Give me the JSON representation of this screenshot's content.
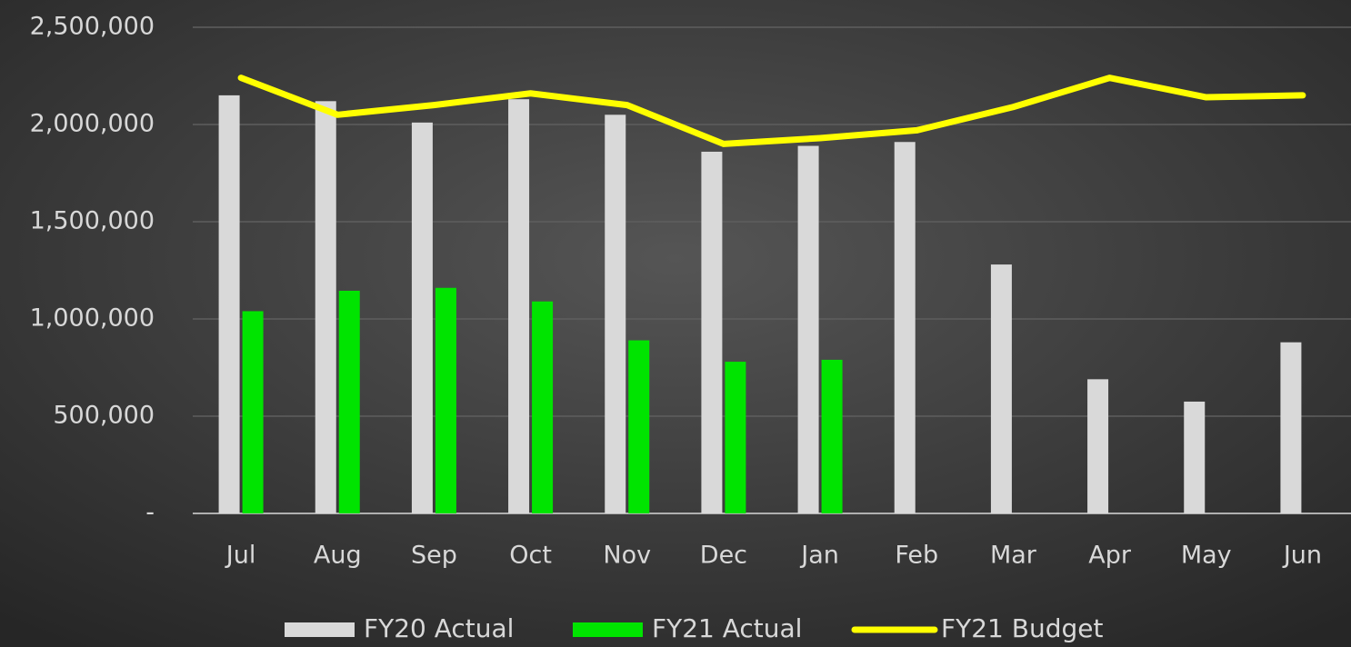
{
  "chart_data": {
    "type": "bar",
    "categories": [
      "Jul",
      "Aug",
      "Sep",
      "Oct",
      "Nov",
      "Dec",
      "Jan",
      "Feb",
      "Mar",
      "Apr",
      "May",
      "Jun"
    ],
    "series": [
      {
        "name": "FY20 Actual",
        "color": "#d9d9d9",
        "type": "bar",
        "values": [
          2150000,
          2120000,
          2010000,
          2130000,
          2050000,
          1860000,
          1890000,
          1910000,
          1280000,
          690000,
          575000,
          880000
        ]
      },
      {
        "name": "FY21 Actual",
        "color": "#00e400",
        "type": "bar",
        "values": [
          1040000,
          1145000,
          1160000,
          1090000,
          890000,
          780000,
          790000,
          null,
          null,
          null,
          null,
          null
        ]
      },
      {
        "name": "FY21 Budget",
        "color": "#ffff00",
        "type": "line",
        "values": [
          2240000,
          2050000,
          2100000,
          2160000,
          2100000,
          1900000,
          1930000,
          1970000,
          2090000,
          2240000,
          2140000,
          2150000
        ]
      }
    ],
    "ylim": [
      0,
      2500000
    ],
    "yticks": [
      {
        "value": 0,
        "label": "-"
      },
      {
        "value": 500000,
        "label": "500,000"
      },
      {
        "value": 1000000,
        "label": "1,000,000"
      },
      {
        "value": 1500000,
        "label": "1,500,000"
      },
      {
        "value": 2000000,
        "label": "2,000,000"
      },
      {
        "value": 2500000,
        "label": "2,500,000"
      }
    ],
    "grid": true,
    "legend": "bottom"
  }
}
